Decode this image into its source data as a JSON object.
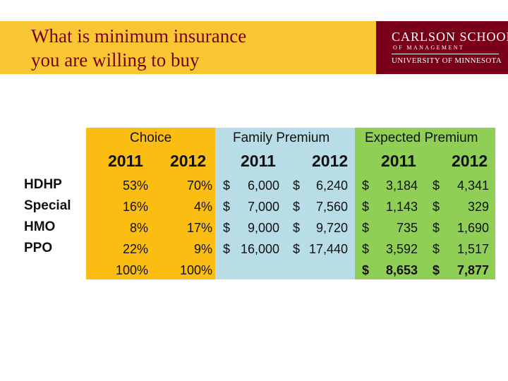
{
  "title": {
    "line1": "What is minimum insurance",
    "line2": "you are willing to buy"
  },
  "logo": {
    "line1": "CARLSON SCHOOL",
    "line2": "OF MANAGEMENT",
    "line3": "UNIVERSITY OF MINNESOTA"
  },
  "colors": {
    "header_band": "#f9c733",
    "title_text": "#7a0019",
    "logo_background": "#7a0019",
    "choice_block": "#fbbd11",
    "family_block": "#b8dde7",
    "expected_block": "#90cf56"
  },
  "table": {
    "groups": {
      "choice": "Choice",
      "family": "Family Premium",
      "expected": "Expected Premium"
    },
    "years": [
      "2011",
      "2012"
    ],
    "rows": [
      {
        "label": "HDHP",
        "choice_2011": "53%",
        "choice_2012": "70%",
        "family_2011": "6,000",
        "family_2012": "6,240",
        "expected_2011": "3,184",
        "expected_2012": "4,341"
      },
      {
        "label": "Special",
        "choice_2011": "16%",
        "choice_2012": "4%",
        "family_2011": "7,000",
        "family_2012": "7,560",
        "expected_2011": "1,143",
        "expected_2012": "329"
      },
      {
        "label": "HMO",
        "choice_2011": "8%",
        "choice_2012": "17%",
        "family_2011": "9,000",
        "family_2012": "9,720",
        "expected_2011": "735",
        "expected_2012": "1,690"
      },
      {
        "label": "PPO",
        "choice_2011": "22%",
        "choice_2012": "9%",
        "family_2011": "16,000",
        "family_2012": "17,440",
        "expected_2011": "3,592",
        "expected_2012": "1,517"
      }
    ],
    "totals": {
      "choice_2011": "100%",
      "choice_2012": "100%",
      "expected_2011": "8,653",
      "expected_2012": "7,877"
    },
    "currency_symbol": "$"
  }
}
